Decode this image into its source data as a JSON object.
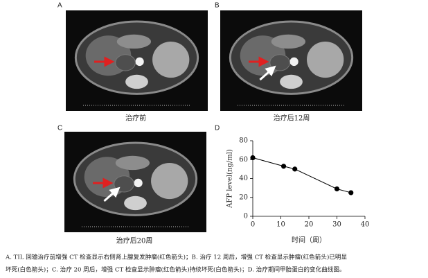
{
  "panels": [
    {
      "label": "A",
      "caption": "治疗前"
    },
    {
      "label": "B",
      "caption": "治疗后12周"
    },
    {
      "label": "C",
      "caption": "治疗后20周"
    }
  ],
  "chart_label": "D",
  "chart_data": {
    "type": "line",
    "x": [
      0,
      11,
      15,
      30,
      35
    ],
    "values": [
      62,
      53,
      50,
      29,
      25
    ],
    "color": "#000000",
    "xlabel": "时间（周）",
    "ylabel": "AFP level(ng/ml)",
    "xlim": [
      0,
      40
    ],
    "xticks": [
      0,
      10,
      20,
      30,
      40
    ],
    "ylim": [
      0,
      80
    ],
    "yticks": [
      0,
      20,
      40,
      60,
      80
    ]
  },
  "figure_caption": [
    "A. TIL 回输治疗前增强 CT 检查显示右侧肾上腺复发肿瘤(红色箭头)；B. 治疗 12 周后，增强 CT 检查显示肿瘤(红色箭头)已明显",
    "坏死(白色箭头)；C. 治疗 20 周后，增强 CT 检查显示肿瘤(红色箭头)持续坏死(白色箭头)；D. 治疗期间甲胎蛋白的变化曲线图。"
  ]
}
